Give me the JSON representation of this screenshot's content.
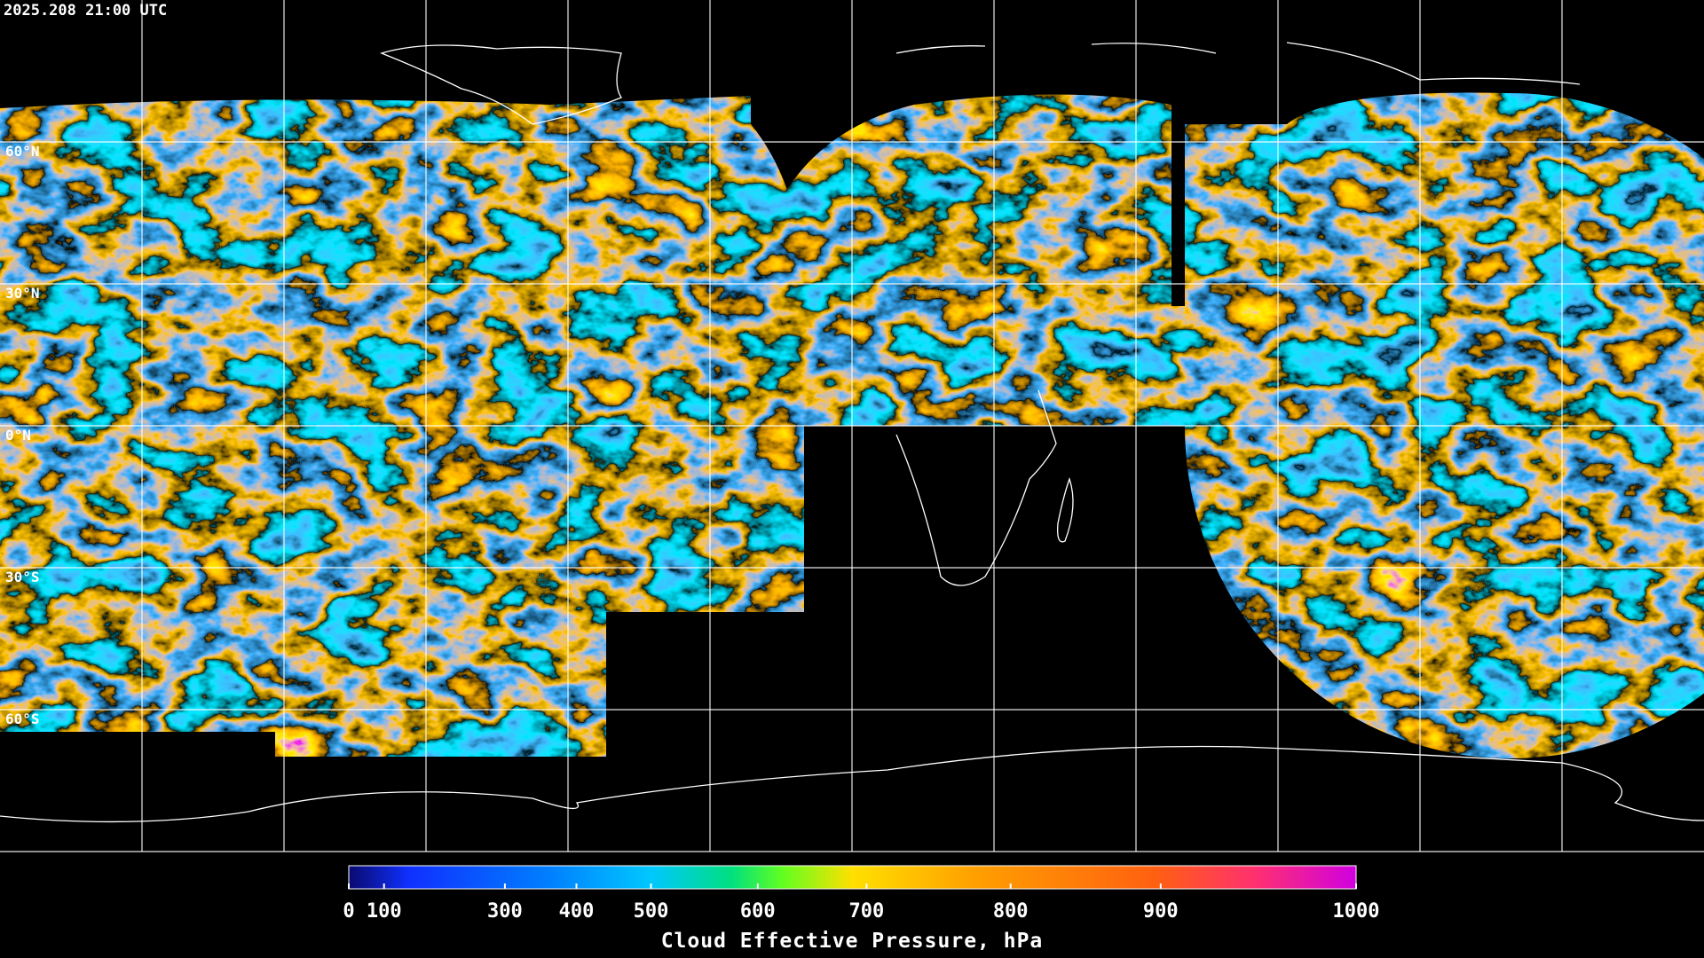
{
  "header": {
    "timestamp": "2025.208 21:00 UTC"
  },
  "map": {
    "lat_labels": [
      "60°N",
      "30°N",
      "0°N",
      "30°S",
      "60°S"
    ]
  },
  "colorbar": {
    "title": "Cloud Effective Pressure, hPa",
    "range": [
      0,
      1000
    ],
    "ticks": [
      0,
      100,
      300,
      400,
      500,
      600,
      700,
      800,
      900,
      1000
    ]
  }
}
